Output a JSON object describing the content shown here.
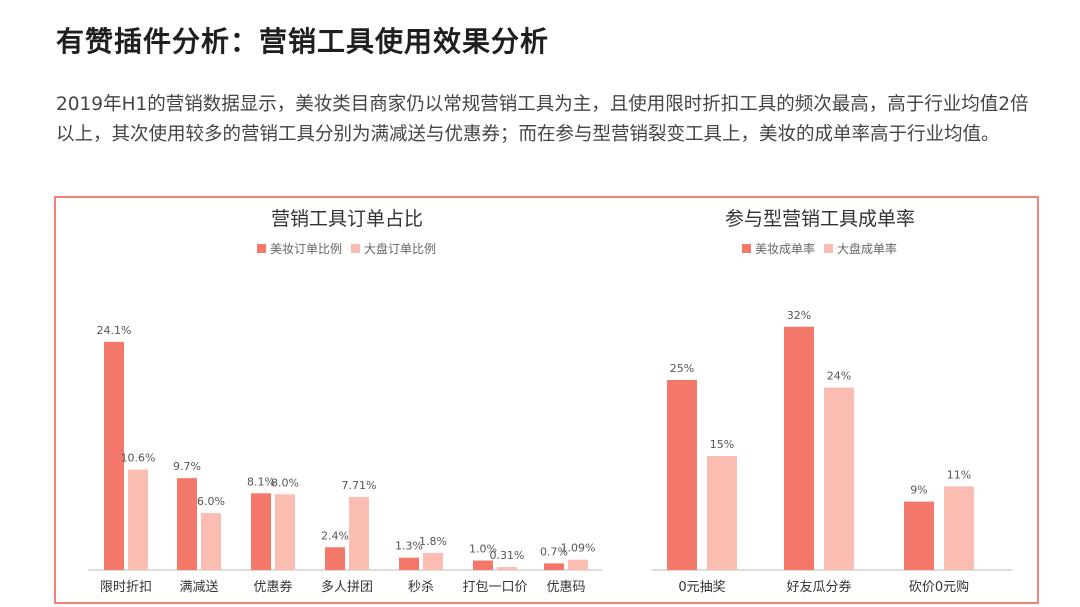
{
  "page": {
    "title": "有赞插件分析：营销工具使用效果分析",
    "description": "2019年H1的营销数据显示，美妆类目商家仍以常规营销工具为主，且使用限时折扣工具的频次最高，高于行业均值2倍以上，其次使用较多的营销工具分别为满减送与优惠券；而在参与型营销裂变工具上，美妆的成单率高于行业均值。"
  },
  "colors": {
    "dark": "#f3786a",
    "light": "#fbbcb2",
    "frame": "#f08276",
    "axis": "#bbbbbb"
  },
  "chart_data": [
    {
      "type": "bar",
      "title": "营销工具订单占比",
      "categories": [
        "限时折扣",
        "满减送",
        "优惠券",
        "多人拼团",
        "秒杀",
        "打包一口价",
        "优惠码"
      ],
      "series": [
        {
          "name": "美妆订单比例",
          "values": [
            24.1,
            9.7,
            8.1,
            2.4,
            1.3,
            1.0,
            0.7
          ],
          "labels": [
            "24.1%",
            "9.7%",
            "8.1%",
            "2.4%",
            "1.3%",
            "1.0%",
            "0.7%"
          ]
        },
        {
          "name": "大盘订单比例",
          "values": [
            10.6,
            6.0,
            8.0,
            7.71,
            1.8,
            0.31,
            1.09
          ],
          "labels": [
            "10.6%",
            "6.0%",
            "8.0%",
            "7.71%",
            "1.8%",
            "0.31%",
            "1.09%"
          ]
        }
      ],
      "ylim": [
        0,
        26.3
      ],
      "legend_position": "top"
    },
    {
      "type": "bar",
      "title": "参与型营销工具成单率",
      "categories": [
        "0元抽奖",
        "好友瓜分券",
        "砍价0元购"
      ],
      "series": [
        {
          "name": "美妆成单率",
          "values": [
            25,
            32,
            9
          ],
          "labels": [
            "25%",
            "32%",
            "9%"
          ]
        },
        {
          "name": "大盘成单率",
          "values": [
            15,
            24,
            11
          ],
          "labels": [
            "15%",
            "24%",
            "11%"
          ]
        }
      ],
      "ylim": [
        0,
        34.6
      ],
      "legend_position": "top"
    }
  ]
}
